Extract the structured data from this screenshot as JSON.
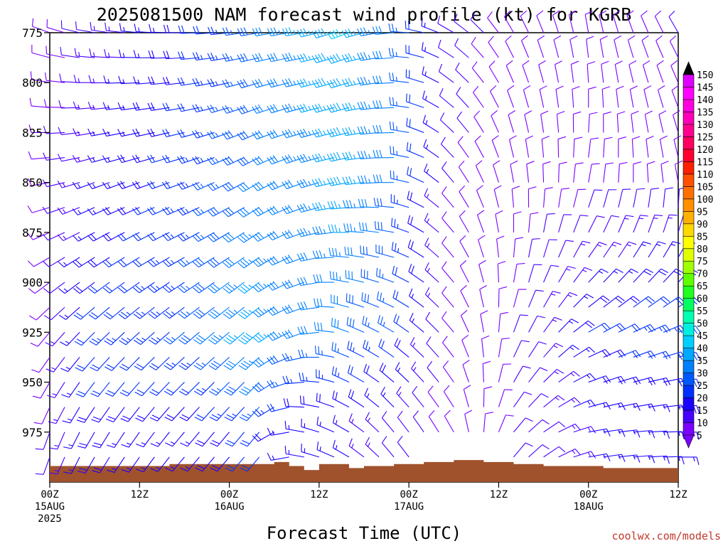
{
  "chart_data": {
    "type": "wind-barb-profile",
    "title": "2025081500 NAM forecast wind profile (kt) for KGRB",
    "xlabel": "Forecast Time (UTC)",
    "credit": "coolwx.com/models",
    "x_unit": "forecast hours from 2025-08-15 00Z",
    "xlim": [
      0,
      84
    ],
    "ylim": [
      775,
      1000
    ],
    "y_axis": "pressure (hPa), inverted",
    "y_ticks": [
      "775",
      "800",
      "825",
      "850",
      "875",
      "900",
      "925",
      "950",
      "975"
    ],
    "x_ticks": [
      {
        "h": 0,
        "l1": "00Z",
        "l2": "15AUG",
        "l3": "2025"
      },
      {
        "h": 12,
        "l1": "12Z",
        "l2": "",
        "l3": ""
      },
      {
        "h": 24,
        "l1": "00Z",
        "l2": "16AUG",
        "l3": ""
      },
      {
        "h": 36,
        "l1": "12Z",
        "l2": "",
        "l3": ""
      },
      {
        "h": 48,
        "l1": "00Z",
        "l2": "17AUG",
        "l3": ""
      },
      {
        "h": 60,
        "l1": "12Z",
        "l2": "",
        "l3": ""
      },
      {
        "h": 72,
        "l1": "00Z",
        "l2": "18AUG",
        "l3": ""
      },
      {
        "h": 84,
        "l1": "12Z",
        "l2": "",
        "l3": ""
      }
    ],
    "colorbar": {
      "unit": "kt",
      "levels": [
        5,
        10,
        15,
        20,
        25,
        30,
        35,
        40,
        45,
        50,
        55,
        60,
        65,
        70,
        75,
        80,
        85,
        90,
        95,
        100,
        105,
        110,
        115,
        120,
        125,
        130,
        135,
        140,
        145,
        150
      ],
      "colors": [
        "#7b00ff",
        "#4800ff",
        "#1a00ff",
        "#0030ff",
        "#0058ff",
        "#0080ff",
        "#00a8ff",
        "#00d0ff",
        "#00f0e0",
        "#00ffb0",
        "#00ff60",
        "#20ff20",
        "#60ff00",
        "#a0ff00",
        "#e0ff00",
        "#ffff00",
        "#ffd800",
        "#ffb000",
        "#ff9000",
        "#ff7000",
        "#ff5000",
        "#ff2000",
        "#ff0030",
        "#ff0060",
        "#ff0090",
        "#ff00b8",
        "#ff00e0",
        "#ff00ff",
        "#e000ff",
        "#000000"
      ]
    },
    "surface_color": "#a0522d",
    "surface_pressure_hpa": [
      {
        "h": 0,
        "p": 992
      },
      {
        "h": 12,
        "p": 992
      },
      {
        "h": 16,
        "p": 991
      },
      {
        "h": 30,
        "p": 990
      },
      {
        "h": 32,
        "p": 992
      },
      {
        "h": 34,
        "p": 994
      },
      {
        "h": 36,
        "p": 991
      },
      {
        "h": 40,
        "p": 993
      },
      {
        "h": 42,
        "p": 992
      },
      {
        "h": 46,
        "p": 991
      },
      {
        "h": 50,
        "p": 990
      },
      {
        "h": 54,
        "p": 989
      },
      {
        "h": 58,
        "p": 990
      },
      {
        "h": 62,
        "p": 991
      },
      {
        "h": 66,
        "p": 992
      },
      {
        "h": 74,
        "p": 993
      },
      {
        "h": 84,
        "p": 994
      }
    ],
    "wind_profile_keyframes": [
      {
        "h": 0,
        "levels": [
          {
            "p": 775,
            "dir": 290,
            "spd": 8
          },
          {
            "p": 850,
            "dir": 260,
            "spd": 8
          },
          {
            "p": 925,
            "dir": 220,
            "spd": 8
          },
          {
            "p": 975,
            "dir": 200,
            "spd": 10
          }
        ]
      },
      {
        "h": 6,
        "levels": [
          {
            "p": 775,
            "dir": 280,
            "spd": 12
          },
          {
            "p": 850,
            "dir": 250,
            "spd": 15
          },
          {
            "p": 925,
            "dir": 225,
            "spd": 22
          },
          {
            "p": 975,
            "dir": 210,
            "spd": 18
          }
        ]
      },
      {
        "h": 18,
        "levels": [
          {
            "p": 775,
            "dir": 270,
            "spd": 18
          },
          {
            "p": 850,
            "dir": 250,
            "spd": 22
          },
          {
            "p": 925,
            "dir": 230,
            "spd": 25
          },
          {
            "p": 975,
            "dir": 220,
            "spd": 15
          }
        ]
      },
      {
        "h": 28,
        "levels": [
          {
            "p": 775,
            "dir": 260,
            "spd": 28
          },
          {
            "p": 850,
            "dir": 240,
            "spd": 30
          },
          {
            "p": 925,
            "dir": 230,
            "spd": 38
          },
          {
            "p": 975,
            "dir": 220,
            "spd": 22
          }
        ]
      },
      {
        "h": 34,
        "levels": [
          {
            "p": 775,
            "dir": 260,
            "spd": 35
          },
          {
            "p": 850,
            "dir": 250,
            "spd": 32
          },
          {
            "p": 925,
            "dir": 250,
            "spd": 30
          },
          {
            "p": 975,
            "dir": 280,
            "spd": 15
          }
        ]
      },
      {
        "h": 40,
        "levels": [
          {
            "p": 775,
            "dir": 250,
            "spd": 40
          },
          {
            "p": 850,
            "dir": 260,
            "spd": 38
          },
          {
            "p": 925,
            "dir": 290,
            "spd": 30
          },
          {
            "p": 975,
            "dir": 300,
            "spd": 15
          }
        ]
      },
      {
        "h": 46,
        "levels": [
          {
            "p": 775,
            "dir": 265,
            "spd": 30
          },
          {
            "p": 850,
            "dir": 270,
            "spd": 30
          },
          {
            "p": 925,
            "dir": 300,
            "spd": 25
          },
          {
            "p": 975,
            "dir": 320,
            "spd": 12
          }
        ]
      },
      {
        "h": 54,
        "levels": [
          {
            "p": 775,
            "dir": 300,
            "spd": 12
          },
          {
            "p": 850,
            "dir": 320,
            "spd": 10
          },
          {
            "p": 925,
            "dir": 320,
            "spd": 8
          },
          {
            "p": 975,
            "dir": 330,
            "spd": 8
          }
        ]
      },
      {
        "h": 62,
        "levels": [
          {
            "p": 775,
            "dir": 330,
            "spd": 8
          },
          {
            "p": 850,
            "dir": 350,
            "spd": 8
          },
          {
            "p": 925,
            "dir": 20,
            "spd": 10
          },
          {
            "p": 975,
            "dir": 40,
            "spd": 10
          }
        ]
      },
      {
        "h": 72,
        "levels": [
          {
            "p": 775,
            "dir": 350,
            "spd": 8
          },
          {
            "p": 850,
            "dir": 10,
            "spd": 8
          },
          {
            "p": 925,
            "dir": 60,
            "spd": 20
          },
          {
            "p": 975,
            "dir": 80,
            "spd": 15
          }
        ]
      },
      {
        "h": 84,
        "levels": [
          {
            "p": 775,
            "dir": 330,
            "spd": 10
          },
          {
            "p": 850,
            "dir": 350,
            "spd": 8
          },
          {
            "p": 925,
            "dir": 70,
            "spd": 25
          },
          {
            "p": 975,
            "dir": 90,
            "spd": 15
          }
        ]
      }
    ],
    "time_step_hours": 2,
    "pressure_step_hpa": 12.5
  }
}
